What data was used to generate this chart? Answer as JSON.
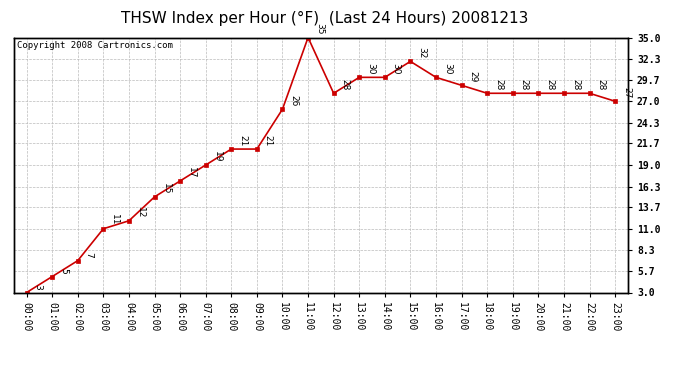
{
  "title": "THSW Index per Hour (°F)  (Last 24 Hours) 20081213",
  "copyright": "Copyright 2008 Cartronics.com",
  "hours": [
    "00:00",
    "01:00",
    "02:00",
    "03:00",
    "04:00",
    "05:00",
    "06:00",
    "07:00",
    "08:00",
    "09:00",
    "10:00",
    "11:00",
    "12:00",
    "13:00",
    "14:00",
    "15:00",
    "16:00",
    "17:00",
    "18:00",
    "19:00",
    "20:00",
    "21:00",
    "22:00",
    "23:00"
  ],
  "values": [
    3,
    5,
    7,
    11,
    12,
    15,
    17,
    19,
    21,
    21,
    26,
    35,
    28,
    30,
    30,
    32,
    30,
    29,
    28,
    28,
    28,
    28,
    28,
    27
  ],
  "ylim_min": 3.0,
  "ylim_max": 35.0,
  "yticks": [
    3.0,
    5.7,
    8.3,
    11.0,
    13.7,
    16.3,
    19.0,
    21.7,
    24.3,
    27.0,
    29.7,
    32.3,
    35.0
  ],
  "ytick_labels": [
    "3.0",
    "5.7",
    "8.3",
    "11.0",
    "13.7",
    "16.3",
    "19.0",
    "21.7",
    "24.3",
    "27.0",
    "29.7",
    "32.3",
    "35.0"
  ],
  "line_color": "#cc0000",
  "marker_color": "#cc0000",
  "bg_color": "#ffffff",
  "grid_color": "#bbbbbb",
  "title_fontsize": 11,
  "copyright_fontsize": 6.5,
  "tick_fontsize": 7,
  "annotation_fontsize": 6.5
}
